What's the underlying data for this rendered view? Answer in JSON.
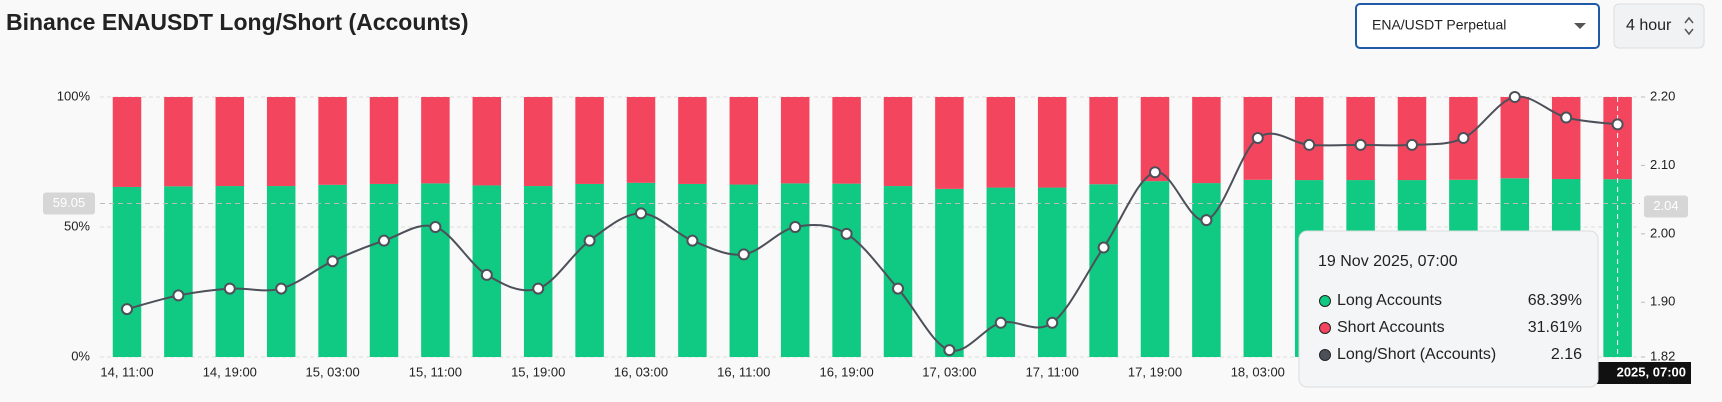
{
  "header": {
    "title": "Binance ENAUSDT Long/Short (Accounts)",
    "symbol_select": "ENA/USDT Perpetual",
    "interval_select": "4 hour"
  },
  "chart_data": {
    "type": "combo",
    "categories": [
      "14, 11:00",
      null,
      "14, 19:00",
      null,
      "15, 03:00",
      null,
      "15, 11:00",
      null,
      "15, 19:00",
      null,
      "16, 03:00",
      null,
      "16, 11:00",
      null,
      "16, 19:00",
      null,
      "17, 03:00",
      null,
      "17, 11:00",
      null,
      "17, 19:00",
      null,
      "18, 03:00",
      null,
      null,
      null,
      null,
      null,
      null,
      null
    ],
    "series": [
      {
        "name": "Long Accounts",
        "color": "#10c983",
        "axis": "y",
        "values": [
          65.4,
          65.64,
          65.75,
          65.75,
          66.22,
          66.56,
          66.78,
          65.99,
          65.75,
          66.56,
          67.0,
          66.56,
          66.33,
          66.78,
          66.67,
          65.75,
          64.66,
          65.16,
          65.16,
          66.44,
          67.64,
          66.89,
          68.15,
          68.05,
          68.05,
          68.05,
          68.15,
          68.75,
          68.45,
          68.39
        ]
      },
      {
        "name": "Short Accounts",
        "color": "#f4455e",
        "axis": "y",
        "values": [
          34.6,
          34.36,
          34.25,
          34.25,
          33.78,
          33.44,
          33.22,
          34.01,
          34.25,
          33.44,
          33.0,
          33.44,
          33.67,
          33.22,
          33.33,
          34.25,
          35.34,
          34.84,
          34.84,
          33.56,
          32.36,
          33.11,
          31.85,
          31.95,
          31.95,
          31.95,
          31.85,
          31.25,
          31.55,
          31.61
        ]
      },
      {
        "name": "Long/Short (Accounts)",
        "color": "#4d5059",
        "axis": "y2",
        "values": [
          1.89,
          1.91,
          1.92,
          1.92,
          1.96,
          1.99,
          2.01,
          1.94,
          1.92,
          1.99,
          2.03,
          1.99,
          1.97,
          2.01,
          2.0,
          1.92,
          1.83,
          1.87,
          1.87,
          1.98,
          2.09,
          2.02,
          2.14,
          2.13,
          2.13,
          2.13,
          2.14,
          2.2,
          2.17,
          2.16
        ]
      }
    ],
    "ylim": [
      0,
      100
    ],
    "yticks": [
      {
        "value": 0,
        "label": "0%"
      },
      {
        "value": 50,
        "label": "50%"
      },
      {
        "value": 100,
        "label": "100%"
      }
    ],
    "y2lim": [
      1.82,
      2.2
    ],
    "y2ticks": [
      1.82,
      {
        "value": 1.9,
        "label": "1.90"
      },
      {
        "value": 2.0,
        "label": "2.00"
      },
      {
        "value": 2.1,
        "label": "2.10"
      },
      {
        "value": 2.2,
        "label": "2.20"
      }
    ],
    "grid": true,
    "crosshair": {
      "index": 29,
      "y": 59.05,
      "y2": 2.04,
      "x_label": "2025, 07:00"
    },
    "tooltip": {
      "title": "19 Nov 2025, 07:00",
      "value_labels": [
        "68.39%",
        "31.61%",
        "2.16"
      ]
    }
  }
}
